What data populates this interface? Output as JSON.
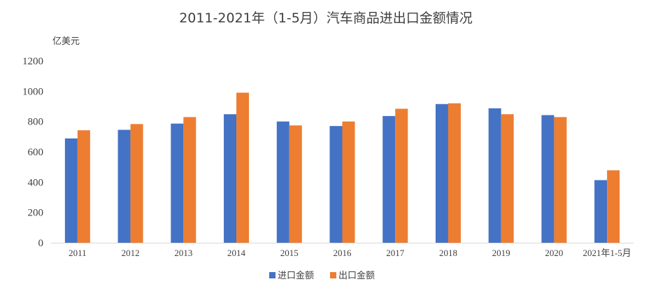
{
  "chart_data": {
    "type": "bar",
    "title": "2011-2021年（1-5月）汽车商品进出口金额情况",
    "ylabel": "亿美元",
    "xlabel": "",
    "ylim": [
      0,
      1200
    ],
    "yticks": [
      0,
      200,
      400,
      600,
      800,
      1000,
      1200
    ],
    "categories": [
      "2011",
      "2012",
      "2013",
      "2014",
      "2015",
      "2016",
      "2017",
      "2018",
      "2019",
      "2020",
      "2021年1-5月"
    ],
    "series": [
      {
        "name": "进口金额",
        "color": "#4472C4",
        "values": [
          688,
          745,
          786,
          848,
          800,
          770,
          836,
          915,
          887,
          842,
          413
        ]
      },
      {
        "name": "出口金额",
        "color": "#ED7D31",
        "values": [
          742,
          783,
          829,
          990,
          774,
          800,
          884,
          920,
          848,
          829,
          478
        ]
      }
    ],
    "grid": false,
    "legend_position": "bottom"
  }
}
